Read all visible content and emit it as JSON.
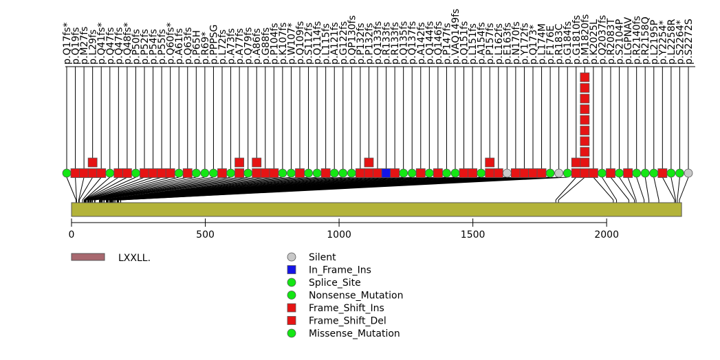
{
  "chart_data": {
    "type": "lollipop",
    "protein_length": 2280,
    "x_axis": {
      "range": [
        0,
        2290
      ],
      "ticks": [
        0,
        500,
        1000,
        1500,
        2000
      ]
    },
    "domains": [
      {
        "name": "LXXLL.",
        "start": 0,
        "end": 2280,
        "color": "#b3b33a"
      }
    ],
    "domain_legend_color": "#a8686f",
    "colors": {
      "Silent": "#c8c8c8",
      "In_Frame_Ins": "#1414e6",
      "Splice_Site": "#14e614",
      "Nonsense_Mutation": "#14e614",
      "Frame_Shift_Ins": "#e61414",
      "Frame_Shift_Del": "#e61414",
      "Missense_Mutation": "#14e614"
    },
    "legend": [
      "Silent",
      "In_Frame_Ins",
      "Splice_Site",
      "Nonsense_Mutation",
      "Frame_Shift_Ins",
      "Frame_Shift_Del",
      "Missense_Mutation"
    ],
    "mutations": [
      {
        "label": "p.Q17fs*",
        "pos": 17,
        "type": "Splice_Site",
        "count": 1
      },
      {
        "label": "p.Q19fs",
        "pos": 19,
        "type": "Frame_Shift_Del",
        "count": 1
      },
      {
        "label": "p.M27fs",
        "pos": 27,
        "type": "Frame_Shift_Del",
        "count": 1
      },
      {
        "label": "p.L29fs",
        "pos": 29,
        "type": "Frame_Shift_Ins",
        "count": 2
      },
      {
        "label": "p.Q41fs*",
        "pos": 41,
        "type": "Frame_Shift_Del",
        "count": 1
      },
      {
        "label": "p.Q47fs",
        "pos": 47,
        "type": "Missense_Mutation",
        "count": 1
      },
      {
        "label": "p.Q47fs",
        "pos": 47,
        "type": "Frame_Shift_Del",
        "count": 1
      },
      {
        "label": "p.Q48fs*",
        "pos": 48,
        "type": "Frame_Shift_Del",
        "count": 1
      },
      {
        "label": "p.P50fs",
        "pos": 50,
        "type": "Missense_Mutation",
        "count": 1
      },
      {
        "label": "p.P52fs",
        "pos": 52,
        "type": "Frame_Shift_Del",
        "count": 1
      },
      {
        "label": "p.P54fs",
        "pos": 54,
        "type": "Frame_Shift_Del",
        "count": 1
      },
      {
        "label": "p.P55fs",
        "pos": 55,
        "type": "Frame_Shift_Del",
        "count": 1
      },
      {
        "label": "p.Q60fs*",
        "pos": 60,
        "type": "Frame_Shift_Del",
        "count": 1
      },
      {
        "label": "p.A61fs",
        "pos": 61,
        "type": "Splice_Site",
        "count": 1
      },
      {
        "label": "p.Q63fs",
        "pos": 63,
        "type": "Frame_Shift_Del",
        "count": 1
      },
      {
        "label": "p.P65H",
        "pos": 65,
        "type": "Missense_Mutation",
        "count": 1
      },
      {
        "label": "p.R69*",
        "pos": 69,
        "type": "Nonsense_Mutation",
        "count": 1
      },
      {
        "label": "p.PPPSG",
        "pos": 70,
        "type": "Missense_Mutation",
        "count": 1
      },
      {
        "label": "p.L72fs",
        "pos": 72,
        "type": "Frame_Shift_Del",
        "count": 1
      },
      {
        "label": "p.A73fs",
        "pos": 73,
        "type": "Missense_Mutation",
        "count": 1
      },
      {
        "label": "p.A77fs",
        "pos": 77,
        "type": "Frame_Shift_Ins",
        "count": 2
      },
      {
        "label": "p.Q79fs",
        "pos": 79,
        "type": "Splice_Site",
        "count": 1
      },
      {
        "label": "p.A86fs",
        "pos": 86,
        "type": "Frame_Shift_Ins",
        "count": 2
      },
      {
        "label": "p.G88fs",
        "pos": 88,
        "type": "Frame_Shift_Del",
        "count": 1
      },
      {
        "label": "p.P104fs",
        "pos": 104,
        "type": "Frame_Shift_Del",
        "count": 1
      },
      {
        "label": "p.K107fs",
        "pos": 107,
        "type": "Missense_Mutation",
        "count": 1
      },
      {
        "label": "p.W107*",
        "pos": 107,
        "type": "Nonsense_Mutation",
        "count": 1
      },
      {
        "label": "p.Q109fs",
        "pos": 109,
        "type": "Frame_Shift_Del",
        "count": 1
      },
      {
        "label": "p.S112fs",
        "pos": 112,
        "type": "Missense_Mutation",
        "count": 1
      },
      {
        "label": "p.Q114fs",
        "pos": 114,
        "type": "Splice_Site",
        "count": 1
      },
      {
        "label": "p.L115fs",
        "pos": 115,
        "type": "Frame_Shift_Del",
        "count": 1
      },
      {
        "label": "p.A121fs",
        "pos": 121,
        "type": "Missense_Mutation",
        "count": 1
      },
      {
        "label": "p.G122fs",
        "pos": 122,
        "type": "Missense_Mutation",
        "count": 1
      },
      {
        "label": "p.QP130fs",
        "pos": 130,
        "type": "Missense_Mutation",
        "count": 1
      },
      {
        "label": "p.P132fs",
        "pos": 132,
        "type": "Frame_Shift_Del",
        "count": 1
      },
      {
        "label": "p.P132fs",
        "pos": 132,
        "type": "Frame_Shift_Ins",
        "count": 2
      },
      {
        "label": "p.Q133fs",
        "pos": 133,
        "type": "Frame_Shift_Del",
        "count": 1
      },
      {
        "label": "p.R133fs",
        "pos": 133,
        "type": "In_Frame_Ins",
        "count": 1
      },
      {
        "label": "p.R133fs",
        "pos": 133,
        "type": "Frame_Shift_Del",
        "count": 1
      },
      {
        "label": "p.Q135fs",
        "pos": 135,
        "type": "Missense_Mutation",
        "count": 1
      },
      {
        "label": "p.Q137fs",
        "pos": 137,
        "type": "Missense_Mutation",
        "count": 1
      },
      {
        "label": "p.A142fs",
        "pos": 142,
        "type": "Frame_Shift_Del",
        "count": 1
      },
      {
        "label": "p.Q144fs",
        "pos": 144,
        "type": "Missense_Mutation",
        "count": 1
      },
      {
        "label": "p.Q146fs",
        "pos": 146,
        "type": "Frame_Shift_Del",
        "count": 1
      },
      {
        "label": "p.P147fs",
        "pos": 147,
        "type": "Missense_Mutation",
        "count": 1
      },
      {
        "label": "p.VAQ149fs",
        "pos": 149,
        "type": "Missense_Mutation",
        "count": 1
      },
      {
        "label": "p.Q151fs",
        "pos": 151,
        "type": "Frame_Shift_Del",
        "count": 1
      },
      {
        "label": "p.L151fs",
        "pos": 151,
        "type": "Frame_Shift_Del",
        "count": 1
      },
      {
        "label": "p.A154fs",
        "pos": 154,
        "type": "Missense_Mutation",
        "count": 1
      },
      {
        "label": "p.P157fs",
        "pos": 157,
        "type": "Frame_Shift_Ins",
        "count": 2
      },
      {
        "label": "p.L162fs",
        "pos": 162,
        "type": "Frame_Shift_Del",
        "count": 1
      },
      {
        "label": "p.E163fs",
        "pos": 163,
        "type": "Silent",
        "count": 1
      },
      {
        "label": "p.N170fs",
        "pos": 170,
        "type": "Frame_Shift_Del",
        "count": 1
      },
      {
        "label": "p.Y172fs",
        "pos": 172,
        "type": "Frame_Shift_Del",
        "count": 1
      },
      {
        "label": "p.Q173*",
        "pos": 173,
        "type": "Frame_Shift_Del",
        "count": 1
      },
      {
        "label": "p.L174M",
        "pos": 174,
        "type": "Frame_Shift_Del",
        "count": 1
      },
      {
        "label": "p.F176E",
        "pos": 176,
        "type": "Missense_Mutation",
        "count": 1
      },
      {
        "label": "p.R183C",
        "pos": 183,
        "type": "Silent",
        "count": 1
      },
      {
        "label": "p.G184fs",
        "pos": 184,
        "type": "Missense_Mutation",
        "count": 1
      },
      {
        "label": "p.M1820fs",
        "pos": 1820,
        "type": "Frame_Shift_Ins",
        "count": 10
      },
      {
        "label": "p.G1810fs",
        "pos": 1810,
        "type": "Frame_Shift_Ins",
        "count": 2
      },
      {
        "label": "p.K2025L",
        "pos": 2025,
        "type": "Frame_Shift_Del",
        "count": 1
      },
      {
        "label": "p.Q2037fs",
        "pos": 2037,
        "type": "Missense_Mutation",
        "count": 1
      },
      {
        "label": "p.R2083T",
        "pos": 2083,
        "type": "Frame_Shift_Del",
        "count": 1
      },
      {
        "label": "p.S2104P",
        "pos": 2104,
        "type": "Missense_Mutation",
        "count": 1
      },
      {
        "label": "p.LGPNAV",
        "pos": 2110,
        "type": "Frame_Shift_Del",
        "count": 1
      },
      {
        "label": "p.R2140fs",
        "pos": 2140,
        "type": "Missense_Mutation",
        "count": 1
      },
      {
        "label": "p.R2158Q",
        "pos": 2158,
        "type": "Missense_Mutation",
        "count": 1
      },
      {
        "label": "p.L2195P",
        "pos": 2195,
        "type": "Missense_Mutation",
        "count": 1
      },
      {
        "label": "p.Y2254*",
        "pos": 2254,
        "type": "Frame_Shift_Del",
        "count": 1
      },
      {
        "label": "p.L2258R",
        "pos": 2258,
        "type": "Missense_Mutation",
        "count": 1
      },
      {
        "label": "p.S2264*",
        "pos": 2264,
        "type": "Missense_Mutation",
        "count": 1
      },
      {
        "label": "p.S2272S",
        "pos": 2272,
        "type": "Silent",
        "count": 1
      }
    ]
  }
}
